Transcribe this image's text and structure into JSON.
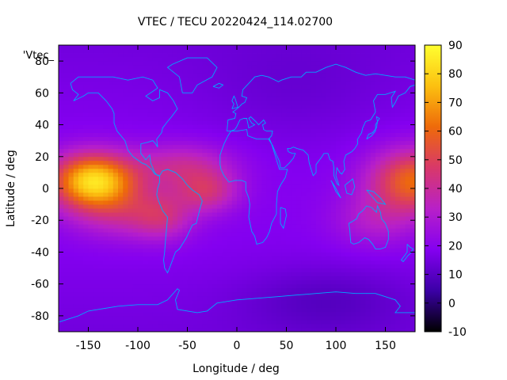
{
  "chart_data": {
    "type": "heatmap",
    "title": "VTEC / TECU 20220424_114.02700",
    "xlabel": "Longitude / deg",
    "ylabel": "Latitude / deg",
    "legend_entry": "'Vtec_",
    "xlim": [
      -180,
      180
    ],
    "ylim": [
      -90,
      90
    ],
    "x_ticks": [
      -150,
      -100,
      -50,
      0,
      50,
      100,
      150
    ],
    "y_ticks": [
      -80,
      -60,
      -40,
      -20,
      0,
      20,
      40,
      60,
      80
    ],
    "colorbar": {
      "range": [
        -10,
        90
      ],
      "ticks": [
        -10,
        0,
        10,
        20,
        30,
        40,
        50,
        60,
        70,
        80,
        90
      ],
      "colors": [
        "#000000",
        "#3b00a6",
        "#8400f0",
        "#b820c8",
        "#d8386a",
        "#ee6a0a",
        "#fcc010",
        "#ffff30"
      ]
    },
    "grid": {
      "lon_step": 5,
      "lat_step": 2.5
    },
    "map_overlay_color": "#00a8ff"
  }
}
